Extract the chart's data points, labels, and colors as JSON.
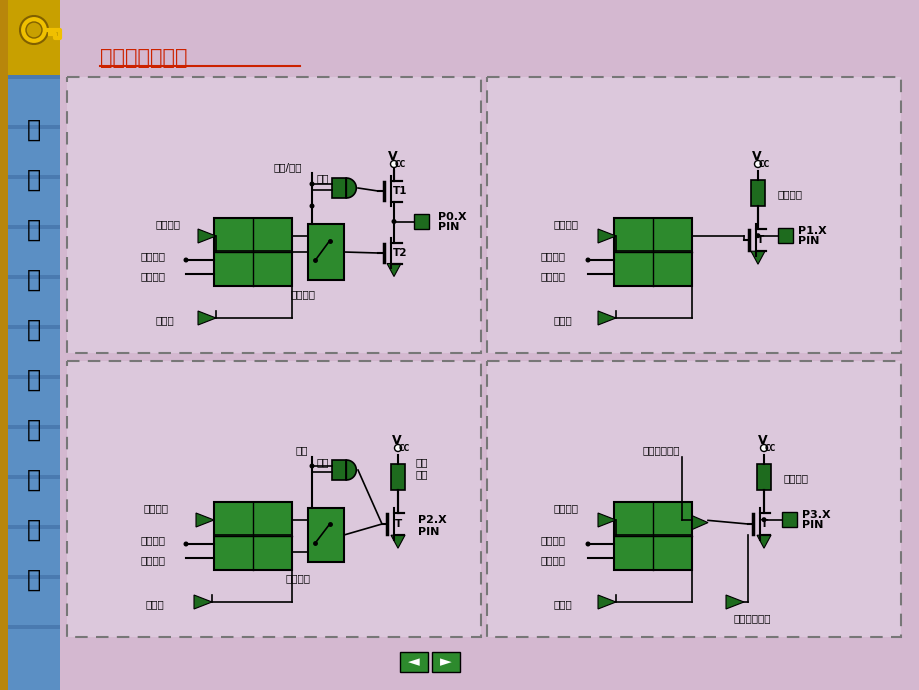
{
  "title": "并行口结构框图",
  "title_color": "#cc2200",
  "bg_color": "#d4b8d0",
  "sidebar_color": "#5b8fc4",
  "panel_bg": "#dcc8dc",
  "panel_border_color": "#999999",
  "green_dark": "#1e6b1e",
  "green_mid": "#2d8a2d",
  "sidebar_text": [
    "单",
    "片",
    "微",
    "型",
    "机",
    "原",
    "理",
    "与",
    "应",
    "用"
  ],
  "key_color": "#c8a000",
  "nav_button_color": "#2d8a2d"
}
